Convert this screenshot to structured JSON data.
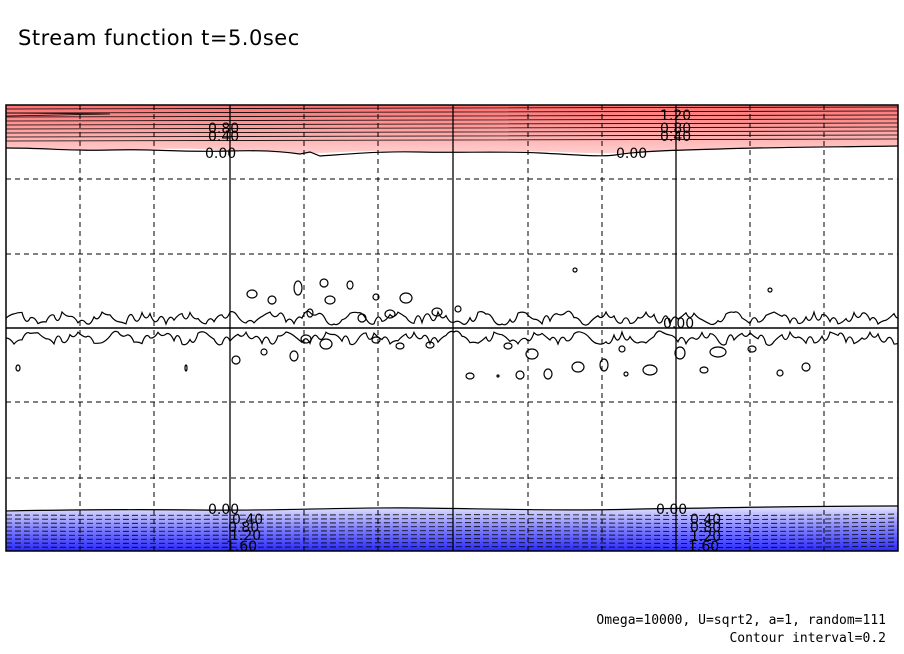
{
  "title": "Stream function t=5.0sec",
  "notes": {
    "params": "Omega=10000, U=sqrt2, a=1, random=111",
    "interval": "Contour interval=0.2"
  },
  "colors": {
    "positive_band": "#ff7f7f",
    "negative_band": "#3c3cff",
    "contour": "#000000",
    "background": "#ffffff"
  },
  "chart_data": {
    "type": "contour",
    "field": "stream function",
    "time": "5.0sec",
    "contour_interval": 0.2,
    "grid": true,
    "top_band_labels": [
      {
        "text": "1.20",
        "group": "right"
      },
      {
        "text": "0.80",
        "group": "left"
      },
      {
        "text": "0.40",
        "group": "left"
      },
      {
        "text": "0.80",
        "group": "right"
      },
      {
        "text": "0.40",
        "group": "right"
      },
      {
        "text": "0.00",
        "group": "left"
      },
      {
        "text": "0.00",
        "group": "right"
      }
    ],
    "middle_labels": [
      {
        "text": "0.00"
      }
    ],
    "bottom_band_labels": [
      {
        "text": "0.00",
        "group": "left"
      },
      {
        "text": "0.00",
        "group": "right"
      },
      {
        "text": "0.40",
        "group": "left"
      },
      {
        "text": "0.80",
        "group": "left"
      },
      {
        "text": "1.20",
        "group": "left"
      },
      {
        "text": "1.60",
        "group": "left"
      },
      {
        "text": "0.40",
        "group": "right"
      },
      {
        "text": "0.80",
        "group": "right"
      },
      {
        "text": "1.20",
        "group": "right"
      },
      {
        "text": "1.60",
        "group": "right"
      }
    ]
  }
}
